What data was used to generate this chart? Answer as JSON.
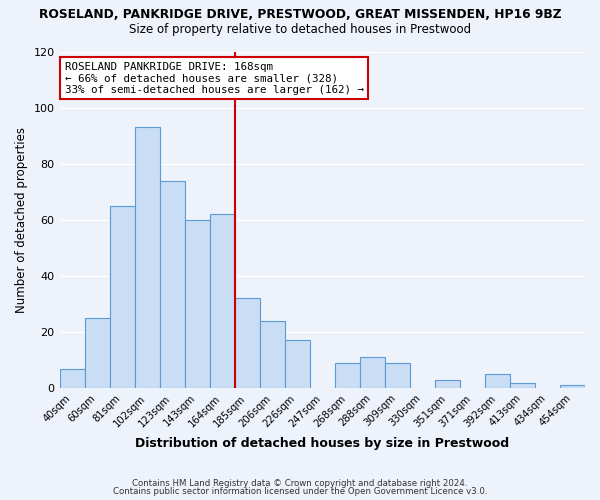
{
  "title": "ROSELAND, PANKRIDGE DRIVE, PRESTWOOD, GREAT MISSENDEN, HP16 9BZ",
  "subtitle": "Size of property relative to detached houses in Prestwood",
  "xlabel": "Distribution of detached houses by size in Prestwood",
  "ylabel": "Number of detached properties",
  "bar_color": "#c9ddf5",
  "bar_edge_color": "#5b9bd5",
  "background_color": "#eef2fb",
  "grid_color": "#ffffff",
  "bins": [
    "40sqm",
    "60sqm",
    "81sqm",
    "102sqm",
    "123sqm",
    "143sqm",
    "164sqm",
    "185sqm",
    "206sqm",
    "226sqm",
    "247sqm",
    "268sqm",
    "288sqm",
    "309sqm",
    "330sqm",
    "351sqm",
    "371sqm",
    "392sqm",
    "413sqm",
    "434sqm",
    "454sqm"
  ],
  "values": [
    7,
    25,
    65,
    93,
    74,
    60,
    62,
    32,
    24,
    17,
    0,
    9,
    11,
    9,
    0,
    3,
    0,
    5,
    2,
    0,
    1
  ],
  "vline_x": 6.5,
  "vline_color": "#cc0000",
  "annotation_text": "ROSELAND PANKRIDGE DRIVE: 168sqm\n← 66% of detached houses are smaller (328)\n33% of semi-detached houses are larger (162) →",
  "annotation_box_color": "white",
  "annotation_box_edge_color": "#cc0000",
  "ylim": [
    0,
    120
  ],
  "yticks": [
    0,
    20,
    40,
    60,
    80,
    100,
    120
  ],
  "footer1": "Contains HM Land Registry data © Crown copyright and database right 2024.",
  "footer2": "Contains public sector information licensed under the Open Government Licence v3.0."
}
